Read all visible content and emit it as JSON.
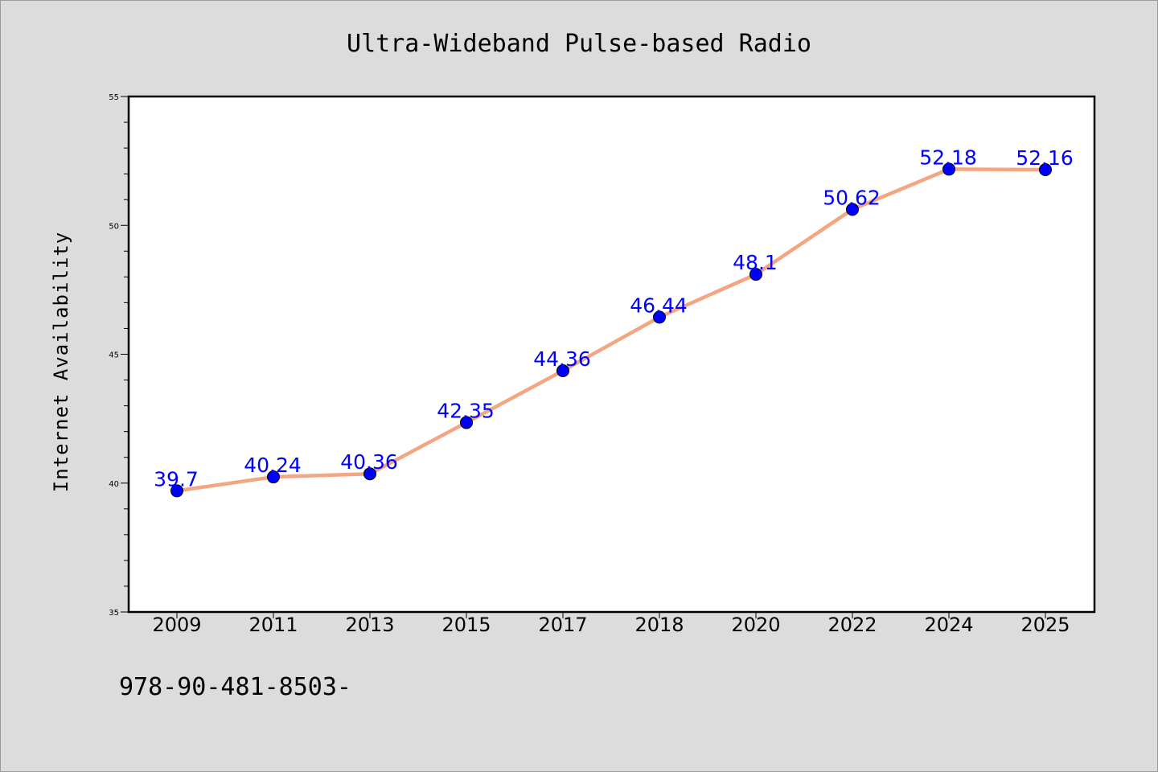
{
  "chart_data": {
    "type": "line",
    "title": "Ultra-Wideband Pulse-based Radio",
    "xlabel": "",
    "ylabel": "Internet Availability",
    "categories": [
      "2009",
      "2011",
      "2013",
      "2015",
      "2017",
      "2018",
      "2020",
      "2022",
      "2024",
      "2025"
    ],
    "series": [
      {
        "values": [
          39.7,
          40.24,
          40.36,
          42.35,
          44.36,
          46.44,
          48.1,
          50.62,
          52.18,
          52.16
        ],
        "data_labels": [
          "39.7",
          "40.24",
          "40.36",
          "42.35",
          "44.36",
          "46.44",
          "48.1",
          "50.62",
          "52.18",
          "52.16"
        ],
        "line_color": "#f4a582",
        "marker_color": "#0000ff"
      }
    ],
    "ylim": [
      35,
      55
    ],
    "yticks": [
      "35",
      "40",
      "45",
      "50",
      "55"
    ],
    "grid": false,
    "legend": "none"
  },
  "footer": {
    "isbn": "978-90-481-8503-"
  },
  "colors": {
    "background": "#dcdcdc",
    "plot_background": "#ffffff",
    "line": "#f4a582",
    "marker": "#0000ff",
    "data_label": "#0000ff"
  }
}
